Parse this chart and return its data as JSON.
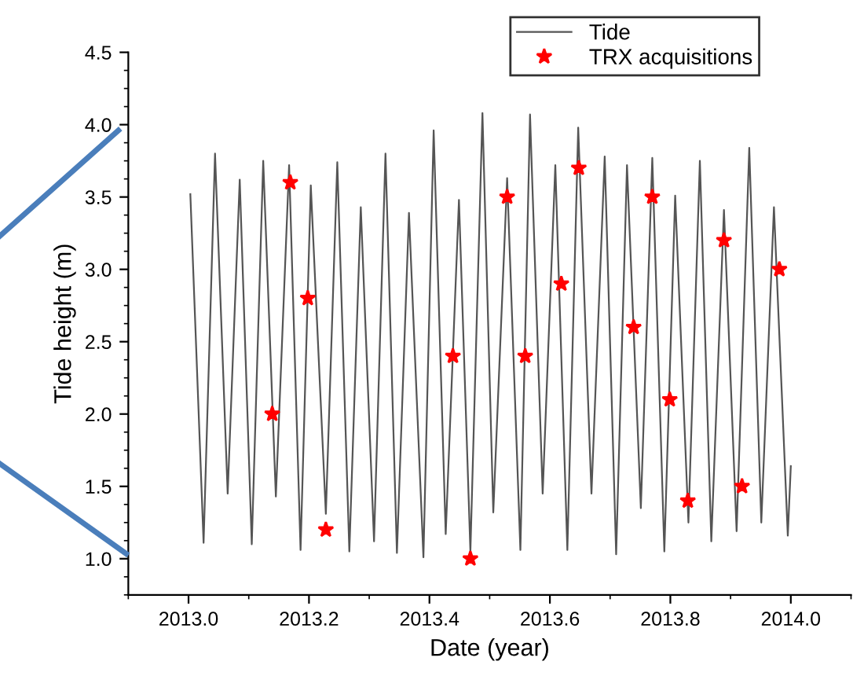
{
  "chart_data": {
    "type": "line",
    "xlabel": "Date (year)",
    "ylabel": "Tide height (m)",
    "xlim": [
      2012.9,
      2014.1
    ],
    "xticks": [
      {
        "value": 2013.0,
        "label": "2013.0"
      },
      2013.2,
      2013.4,
      2013.6,
      2013.8,
      {
        "value": 2014.0,
        "label": "2014.0"
      }
    ],
    "ylim": [
      0.75,
      4.5
    ],
    "yticks": [
      {
        "value": 1.0,
        "label": "1.0"
      },
      1.5,
      {
        "value": 2.0,
        "label": "2.0"
      },
      2.5,
      {
        "value": 3.0,
        "label": "3.0"
      },
      3.5,
      {
        "value": 4.0,
        "label": "4.0"
      },
      4.5
    ],
    "grid": false,
    "legend": "top right",
    "series": [
      {
        "name": "Tide",
        "color": "#555555",
        "marker": "none",
        "line_style": "solid",
        "x": [
          2013.003,
          2013.025,
          2013.044,
          2013.065,
          2013.085,
          2013.105,
          2013.124,
          2013.145,
          2013.167,
          2013.186,
          2013.203,
          2013.228,
          2013.247,
          2013.267,
          2013.286,
          2013.308,
          2013.327,
          2013.346,
          2013.366,
          2013.39,
          2013.407,
          2013.427,
          2013.449,
          2013.468,
          2013.488,
          2013.506,
          2013.529,
          2013.551,
          2013.567,
          2013.588,
          2013.609,
          2013.629,
          2013.647,
          2013.669,
          2013.691,
          2013.71,
          2013.728,
          2013.751,
          2013.77,
          2013.79,
          2013.808,
          2013.83,
          2013.849,
          2013.868,
          2013.889,
          2013.91,
          2013.931,
          2013.951,
          2013.972,
          2013.995,
          2014.0
        ],
        "values": [
          3.52,
          1.11,
          3.8,
          1.45,
          3.62,
          1.1,
          3.75,
          1.43,
          3.72,
          1.06,
          3.58,
          1.31,
          3.74,
          1.05,
          3.43,
          1.12,
          3.8,
          1.04,
          3.39,
          1.01,
          3.96,
          1.17,
          3.48,
          1.05,
          4.08,
          1.32,
          3.63,
          1.06,
          4.07,
          1.45,
          3.72,
          1.06,
          3.98,
          1.45,
          3.78,
          1.03,
          3.72,
          1.35,
          3.77,
          1.05,
          3.51,
          1.25,
          3.75,
          1.12,
          3.41,
          1.19,
          3.84,
          1.25,
          3.43,
          1.16,
          1.64
        ]
      },
      {
        "name": "TRX acquisitions",
        "type": "scatter",
        "color": "#ff0000",
        "marker": "star",
        "x": [
          2013.139,
          2013.169,
          2013.198,
          2013.228,
          2013.439,
          2013.468,
          2013.529,
          2013.559,
          2013.619,
          2013.648,
          2013.739,
          2013.77,
          2013.799,
          2013.829,
          2013.889,
          2013.919,
          2013.981
        ],
        "values": [
          2.0,
          3.6,
          2.8,
          1.2,
          2.4,
          1.0,
          3.5,
          2.4,
          2.9,
          3.7,
          2.6,
          3.5,
          2.1,
          1.4,
          3.2,
          1.5,
          3.0
        ]
      }
    ]
  }
}
